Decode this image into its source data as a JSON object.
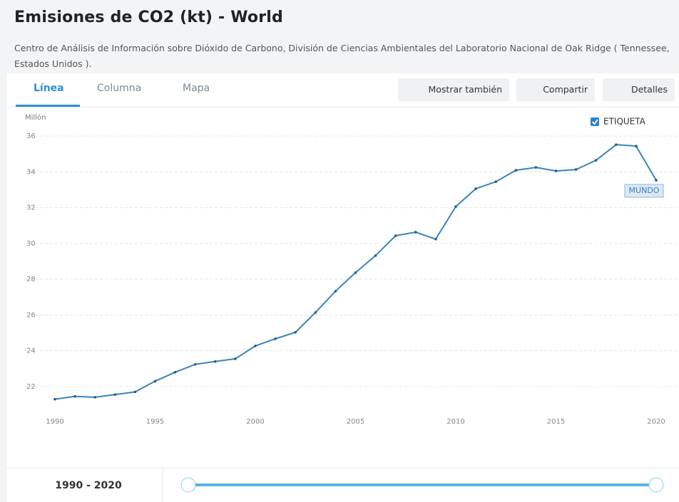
{
  "header": {
    "title": "Emisiones de CO2 (kt) - World",
    "subtitle": "Centro de Análisis de Información sobre Dióxido de Carbono, División de Ciencias Ambientales del Laboratorio Nacional de Oak Ridge ( Tennessee, Estados Unidos )."
  },
  "tabs": [
    "Línea",
    "Columna",
    "Mapa"
  ],
  "buttons": [
    "Mostrar también",
    "Compartir",
    "Detalles"
  ],
  "label_toggle": "ETIQUETA",
  "range": "1990 - 2020",
  "chart_data": {
    "type": "line",
    "y_label": "Millón",
    "x": [
      1990,
      1991,
      1992,
      1993,
      1994,
      1995,
      1996,
      1997,
      1998,
      1999,
      2000,
      2001,
      2002,
      2003,
      2004,
      2005,
      2006,
      2007,
      2008,
      2009,
      2010,
      2011,
      2012,
      2013,
      2014,
      2015,
      2016,
      2017,
      2018,
      2019,
      2020
    ],
    "series": [
      {
        "name": "MUNDO",
        "color": "#3a84b9",
        "values": [
          21.29,
          21.45,
          21.4,
          21.55,
          21.7,
          22.3,
          22.8,
          23.24,
          23.4,
          23.55,
          24.27,
          24.67,
          25.03,
          26.14,
          27.33,
          28.37,
          29.32,
          30.43,
          30.63,
          30.24,
          32.06,
          33.06,
          33.45,
          34.09,
          34.25,
          34.05,
          34.13,
          34.65,
          35.52,
          35.44,
          33.53
        ]
      }
    ],
    "xlim": [
      1990,
      2020
    ],
    "xticks": [
      1990,
      1995,
      2000,
      2005,
      2010,
      2015,
      2020
    ],
    "ylim": [
      20.6,
      37
    ],
    "yticks": [
      22,
      24,
      26,
      28,
      30,
      32,
      34,
      36
    ],
    "grid": true
  }
}
